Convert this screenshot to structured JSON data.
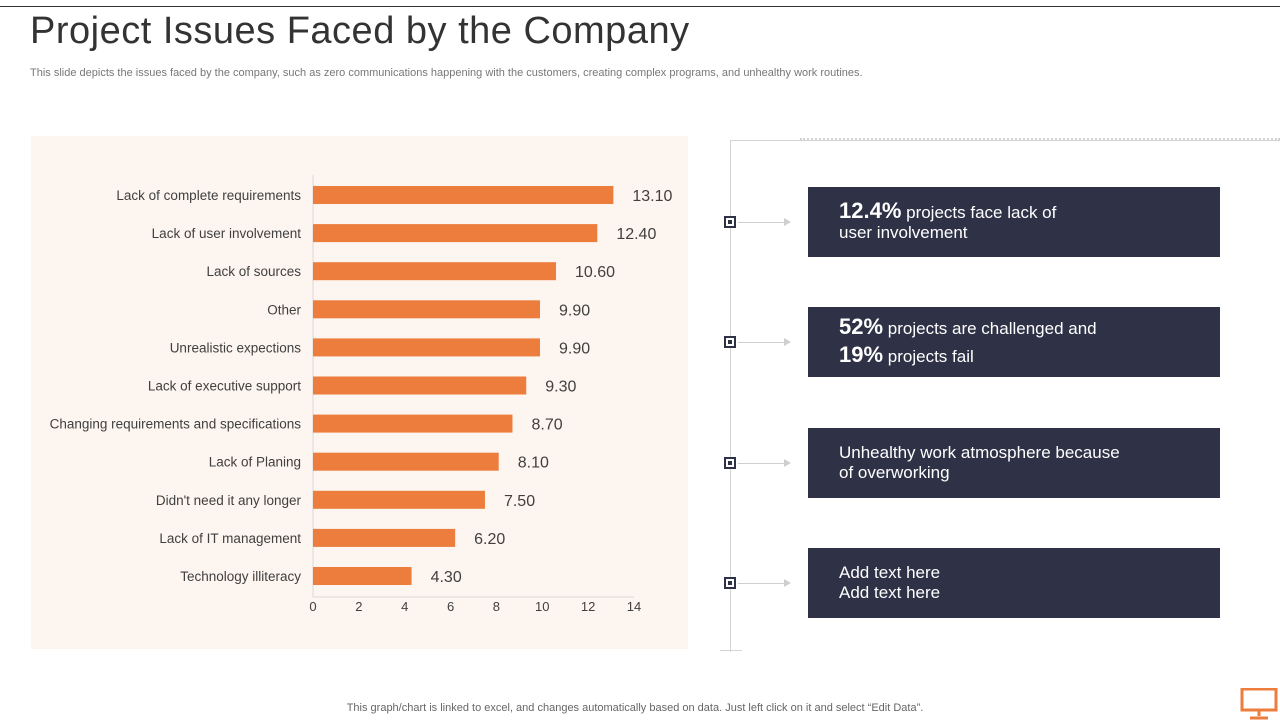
{
  "slide": {
    "title": "Project Issues Faced by the Company",
    "subtitle": "This slide depicts the issues faced by the company, such as zero communications happening with the customers, creating complex programs, and unhealthy work routines.",
    "footnote": "This graph/chart is linked to excel, and changes automatically based on data. Just left click on it and select “Edit Data”."
  },
  "chart_data": {
    "type": "bar",
    "orientation": "horizontal",
    "categories": [
      "Lack of complete requirements",
      "Lack of user involvement",
      "Lack of sources",
      "Other",
      "Unrealistic expections",
      "Lack of executive support",
      "Changing requirements and specifications",
      "Lack of Planing",
      "Didn't need it any longer",
      "Lack of IT management",
      "Technology illiteracy"
    ],
    "values": [
      13.1,
      12.4,
      10.6,
      9.9,
      9.9,
      9.3,
      8.7,
      8.1,
      7.5,
      6.2,
      4.3
    ],
    "value_labels": [
      "13.10",
      "12.40",
      "10.60",
      "9.90",
      "9.90",
      "9.30",
      "8.70",
      "8.10",
      "7.50",
      "6.20",
      "4.30"
    ],
    "xlim": [
      0,
      14
    ],
    "xticks": [
      0,
      2,
      4,
      6,
      8,
      10,
      12,
      14
    ],
    "title": "",
    "xlabel": "",
    "ylabel": "",
    "grid": false,
    "bar_color": "#ed7d3c"
  },
  "callouts": [
    {
      "lines": [
        {
          "big": "12.4%",
          "text": " projects face lack of"
        },
        {
          "big": "",
          "text": "user involvement"
        }
      ]
    },
    {
      "lines": [
        {
          "big": "52%",
          "text": " projects are challenged and"
        },
        {
          "big": "19%",
          "text": " projects fail"
        }
      ]
    },
    {
      "lines": [
        {
          "big": "",
          "text": "Unhealthy work atmosphere because"
        },
        {
          "big": "",
          "text": "of overworking"
        }
      ]
    },
    {
      "lines": [
        {
          "big": "",
          "text": "Add text here"
        },
        {
          "big": "",
          "text": "Add text here"
        }
      ]
    }
  ],
  "icons": {
    "timeline_marker": "square-marker-icon",
    "connector": "arrow-right-icon",
    "corner": "monitor-icon"
  },
  "colors": {
    "accent": "#ed7d3c",
    "callout_bg": "#2f3147",
    "panel_bg": "#fdf5ef"
  }
}
